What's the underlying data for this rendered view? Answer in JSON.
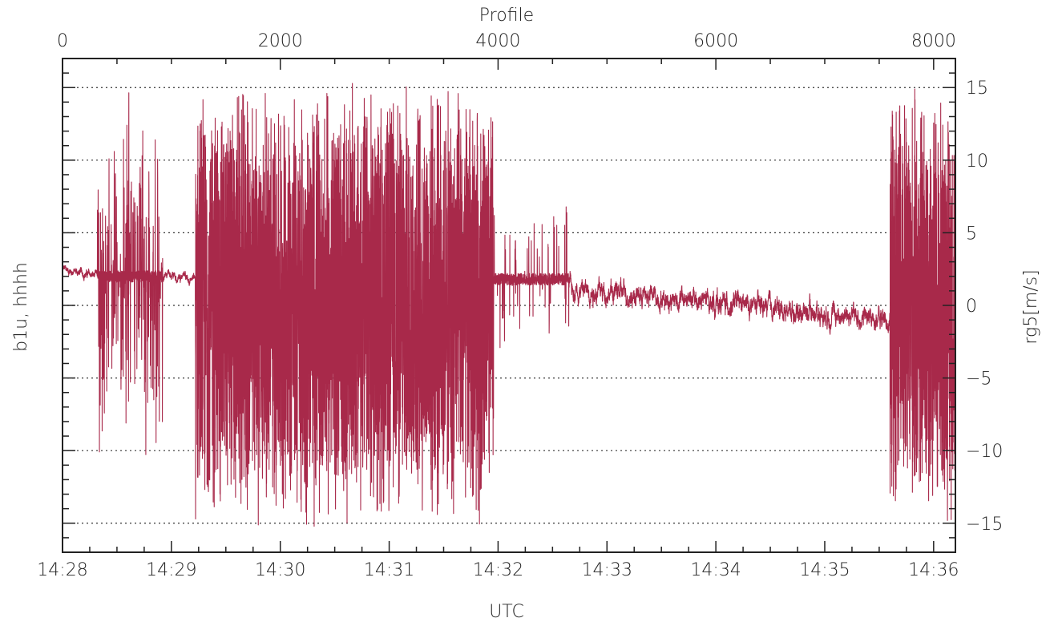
{
  "chart_data": {
    "type": "line",
    "title": "",
    "top_axis": {
      "label": "Profile",
      "range": [
        0,
        8200
      ],
      "ticks": [
        0,
        2000,
        4000,
        6000,
        8000
      ],
      "tick_labels": [
        "0",
        "2000",
        "4000",
        "6000",
        "8000"
      ]
    },
    "bottom_axis": {
      "label": "UTC",
      "range_minutes": [
        0,
        8.2
      ],
      "tick_labels": [
        "14:28",
        "14:29",
        "14:30",
        "14:31",
        "14:32",
        "14:33",
        "14:34",
        "14:35",
        "14:36"
      ]
    },
    "left_axis": {
      "label": "b1u, hhhh"
    },
    "right_axis": {
      "label": "rg5[m/s]",
      "range": [
        -17,
        17
      ],
      "ticks": [
        15,
        10,
        5,
        0,
        -5,
        -10,
        -15
      ],
      "tick_labels": [
        "15",
        "10",
        "5",
        "0",
        "−10",
        "−15"
      ],
      "tick_labels_all": [
        "15",
        "10",
        "5",
        "0",
        "−5",
        "−10",
        "−15"
      ]
    },
    "grid": {
      "horizontal": true,
      "style": "dotted",
      "values": [
        15,
        10,
        5,
        0,
        -5,
        -10,
        -15
      ]
    },
    "series": [
      {
        "color": "#a8294a",
        "segments": [
          {
            "x": [
              0,
              320
            ],
            "mode": "calm",
            "y_from": 2.5,
            "y_to": 2.0,
            "noise": 0.4
          },
          {
            "x": [
              320,
              920
            ],
            "mode": "burst",
            "center": 2.0,
            "amp": 13.0,
            "density": 0.28
          },
          {
            "x": [
              920,
              1220
            ],
            "mode": "calm",
            "y_from": 2.0,
            "y_to": 1.8,
            "noise": 0.4
          },
          {
            "x": [
              1220,
              3960
            ],
            "mode": "dense",
            "center": 0.0,
            "amp": 15.5
          },
          {
            "x": [
              3960,
              4650
            ],
            "mode": "burst",
            "center": 1.8,
            "amp": 6.0,
            "density": 0.06
          },
          {
            "x": [
              4650,
              7600
            ],
            "mode": "calm",
            "y_from": 1.2,
            "y_to": -1.0,
            "noise": 1.0
          },
          {
            "x": [
              7600,
              8200
            ],
            "mode": "dense",
            "center": 0.0,
            "amp": 15.5
          }
        ]
      }
    ]
  }
}
